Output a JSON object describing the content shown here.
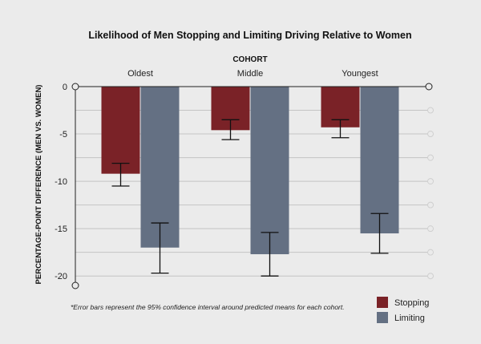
{
  "chart_data": {
    "type": "bar",
    "title": "Likelihood of Men Stopping and Limiting Driving Relative to Women",
    "group_axis_title": "COHORT",
    "categories": [
      "Oldest",
      "Middle",
      "Youngest"
    ],
    "ylabel": "PERCENTAGE-POINT DIFFERENCE (MEN VS. WOMEN)",
    "ylim": [
      -21,
      0
    ],
    "yticks": [
      0,
      -5,
      -10,
      -15,
      -20
    ],
    "grid": true,
    "legend_position": "bottom-right",
    "series": [
      {
        "name": "Stopping",
        "color": "#7a2227",
        "values": [
          -9.2,
          -4.6,
          -4.3
        ],
        "error_low": [
          -10.5,
          -5.6,
          -5.4
        ],
        "error_high": [
          -8.1,
          -3.5,
          -3.5
        ]
      },
      {
        "name": "Limiting",
        "color": "#647083",
        "values": [
          -17.0,
          -17.7,
          -15.5
        ],
        "error_low": [
          -19.7,
          -20.0,
          -17.6
        ],
        "error_high": [
          -14.4,
          -15.4,
          -13.4
        ]
      }
    ],
    "footnote": "*Error bars represent the 95% confidence interval around predicted means for each cohort."
  }
}
